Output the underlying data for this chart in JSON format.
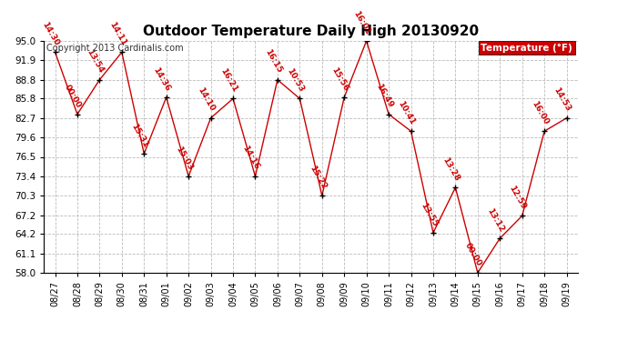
{
  "title": "Outdoor Temperature Daily High 20130920",
  "copyright": "Copyright 2013 Cardinalis.com",
  "legend_label": "Temperature (°F)",
  "dates": [
    "08/27",
    "08/28",
    "08/29",
    "08/30",
    "08/31",
    "09/01",
    "09/02",
    "09/03",
    "09/04",
    "09/05",
    "09/06",
    "09/07",
    "09/08",
    "09/09",
    "09/10",
    "09/11",
    "09/12",
    "09/13",
    "09/14",
    "09/15",
    "09/16",
    "09/17",
    "09/18",
    "09/19"
  ],
  "temperatures": [
    93.2,
    83.3,
    88.8,
    93.2,
    77.0,
    86.0,
    73.4,
    82.7,
    85.8,
    73.4,
    88.8,
    85.8,
    70.3,
    86.0,
    95.0,
    83.3,
    80.6,
    64.4,
    71.6,
    58.0,
    63.5,
    67.1,
    80.6,
    82.7
  ],
  "time_labels": [
    "14:30",
    "00:00",
    "13:54",
    "14:11",
    "15:31",
    "14:36",
    "15:03",
    "14:10",
    "16:21",
    "14:16",
    "16:15",
    "10:53",
    "15:22",
    "15:56",
    "16:01",
    "16:49",
    "10:41",
    "13:55",
    "13:28",
    "00:00",
    "13:12",
    "12:59",
    "16:00",
    "14:53"
  ],
  "ylim": [
    58.0,
    95.0
  ],
  "yticks": [
    58.0,
    61.1,
    64.2,
    67.2,
    70.3,
    73.4,
    76.5,
    79.6,
    82.7,
    85.8,
    88.8,
    91.9,
    95.0
  ],
  "line_color": "#cc0000",
  "marker_color": "#000000",
  "label_color": "#cc0000",
  "background_color": "#ffffff",
  "grid_color": "#bbbbbb",
  "title_fontsize": 11,
  "copyright_fontsize": 7,
  "label_fontsize": 6.5,
  "legend_bg": "#cc0000",
  "legend_text_color": "#ffffff",
  "fig_width": 6.9,
  "fig_height": 3.75,
  "dpi": 100
}
